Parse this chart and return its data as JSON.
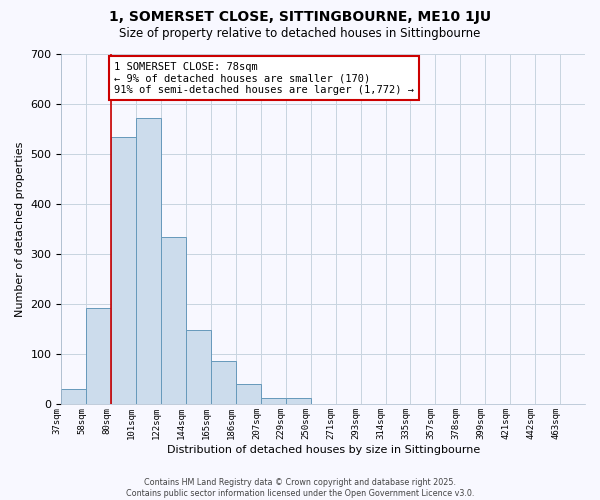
{
  "title": "1, SOMERSET CLOSE, SITTINGBOURNE, ME10 1JU",
  "subtitle": "Size of property relative to detached houses in Sittingbourne",
  "xlabel": "Distribution of detached houses by size in Sittingbourne",
  "ylabel": "Number of detached properties",
  "categories": [
    "37sqm",
    "58sqm",
    "80sqm",
    "101sqm",
    "122sqm",
    "144sqm",
    "165sqm",
    "186sqm",
    "207sqm",
    "229sqm",
    "250sqm",
    "271sqm",
    "293sqm",
    "314sqm",
    "335sqm",
    "357sqm",
    "378sqm",
    "399sqm",
    "421sqm",
    "442sqm",
    "463sqm"
  ],
  "bar_heights": [
    30,
    193,
    535,
    573,
    335,
    149,
    87,
    40,
    12,
    12,
    0,
    0,
    0,
    0,
    0,
    0,
    0,
    0,
    0,
    0,
    0
  ],
  "bar_color": "#ccdcec",
  "bar_edgecolor": "#6699bb",
  "marker_bin": 2,
  "ylim": [
    0,
    700
  ],
  "yticks": [
    0,
    100,
    200,
    300,
    400,
    500,
    600,
    700
  ],
  "annotation_lines": [
    "1 SOMERSET CLOSE: 78sqm",
    "← 9% of detached houses are smaller (170)",
    "91% of semi-detached houses are larger (1,772) →"
  ],
  "annotation_box_facecolor": "#ffffff",
  "annotation_box_edgecolor": "#cc0000",
  "vline_color": "#cc0000",
  "grid_color": "#c8d4e0",
  "background_color": "#f8f8ff",
  "footer_line1": "Contains HM Land Registry data © Crown copyright and database right 2025.",
  "footer_line2": "Contains public sector information licensed under the Open Government Licence v3.0."
}
